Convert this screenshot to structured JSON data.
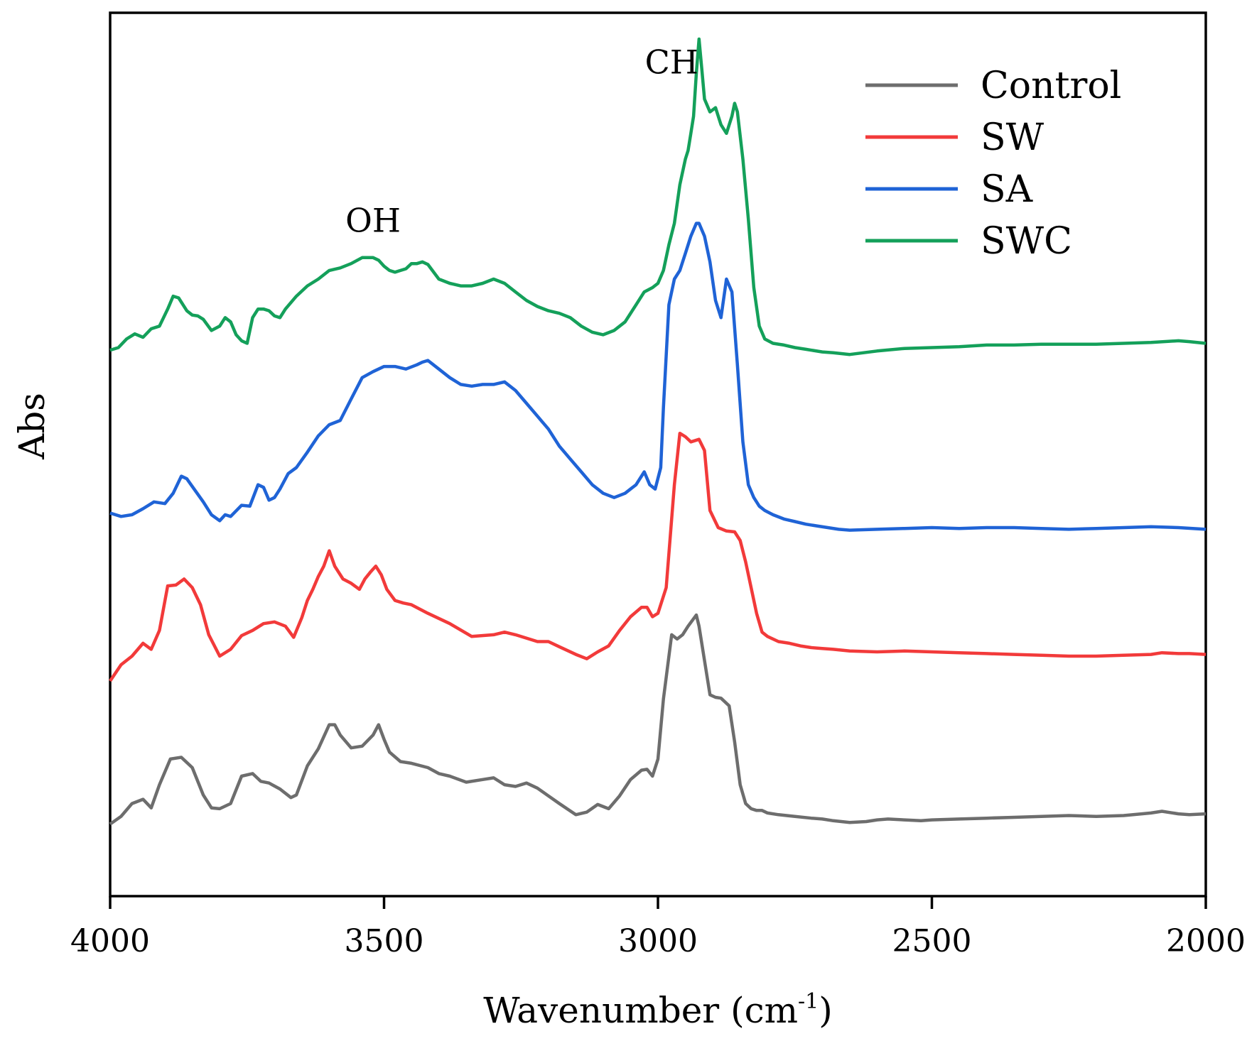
{
  "chart_data": {
    "type": "line",
    "title": "",
    "xlabel": "Wavenumber (cm",
    "xlabel_sup": "-1",
    "xlabel_close": ")",
    "ylabel": "Abs",
    "xlim": [
      4000,
      2000
    ],
    "ylim": [
      0,
      1
    ],
    "x_ticks": [
      4000,
      3500,
      3000,
      2500,
      2000
    ],
    "x_tick_labels": [
      "4000",
      "3500",
      "3000",
      "2500",
      "2000"
    ],
    "grid": false,
    "legend_position": "top-right",
    "annotations": [
      {
        "text": "OH",
        "x": 3520,
        "y": 0.775
      },
      {
        "text": "CH",
        "x": 2975,
        "y": 0.96
      }
    ],
    "series": [
      {
        "name": "Control",
        "color": "#6d6d6d",
        "x": [
          4000,
          3980,
          3960,
          3940,
          3925,
          3910,
          3890,
          3870,
          3850,
          3830,
          3815,
          3800,
          3780,
          3760,
          3740,
          3725,
          3710,
          3690,
          3670,
          3660,
          3640,
          3620,
          3600,
          3590,
          3580,
          3560,
          3540,
          3520,
          3510,
          3500,
          3490,
          3470,
          3450,
          3420,
          3400,
          3380,
          3350,
          3320,
          3300,
          3280,
          3260,
          3240,
          3220,
          3200,
          3180,
          3150,
          3130,
          3110,
          3090,
          3070,
          3050,
          3030,
          3020,
          3010,
          3000,
          2990,
          2975,
          2965,
          2955,
          2945,
          2930,
          2925,
          2915,
          2905,
          2895,
          2885,
          2870,
          2860,
          2850,
          2840,
          2830,
          2820,
          2810,
          2800,
          2780,
          2750,
          2720,
          2700,
          2680,
          2650,
          2620,
          2600,
          2580,
          2550,
          2520,
          2500,
          2450,
          2400,
          2350,
          2300,
          2250,
          2200,
          2150,
          2100,
          2080,
          2050,
          2030,
          2000
        ],
        "values": [
          0.084,
          0.093,
          0.108,
          0.113,
          0.103,
          0.13,
          0.16,
          0.162,
          0.15,
          0.118,
          0.103,
          0.102,
          0.108,
          0.14,
          0.143,
          0.134,
          0.132,
          0.125,
          0.115,
          0.118,
          0.152,
          0.172,
          0.2,
          0.2,
          0.188,
          0.173,
          0.175,
          0.188,
          0.2,
          0.183,
          0.168,
          0.157,
          0.155,
          0.15,
          0.143,
          0.14,
          0.133,
          0.136,
          0.138,
          0.13,
          0.128,
          0.132,
          0.126,
          0.117,
          0.108,
          0.095,
          0.098,
          0.107,
          0.102,
          0.117,
          0.136,
          0.147,
          0.148,
          0.14,
          0.16,
          0.23,
          0.305,
          0.3,
          0.305,
          0.315,
          0.328,
          0.315,
          0.275,
          0.235,
          0.232,
          0.231,
          0.222,
          0.18,
          0.13,
          0.108,
          0.102,
          0.1,
          0.1,
          0.097,
          0.095,
          0.093,
          0.091,
          0.09,
          0.088,
          0.086,
          0.087,
          0.089,
          0.09,
          0.089,
          0.088,
          0.089,
          0.09,
          0.091,
          0.092,
          0.093,
          0.094,
          0.093,
          0.094,
          0.097,
          0.099,
          0.096,
          0.095,
          0.096
        ]
      },
      {
        "name": "SW",
        "color": "#f23a3a",
        "x": [
          4000,
          3980,
          3960,
          3940,
          3925,
          3910,
          3895,
          3880,
          3865,
          3850,
          3835,
          3820,
          3800,
          3780,
          3760,
          3740,
          3720,
          3700,
          3680,
          3665,
          3650,
          3640,
          3630,
          3620,
          3610,
          3600,
          3590,
          3575,
          3560,
          3545,
          3535,
          3525,
          3515,
          3505,
          3495,
          3480,
          3465,
          3450,
          3420,
          3380,
          3340,
          3300,
          3280,
          3260,
          3220,
          3200,
          3180,
          3150,
          3130,
          3110,
          3090,
          3070,
          3050,
          3030,
          3020,
          3010,
          3000,
          2985,
          2970,
          2960,
          2950,
          2940,
          2925,
          2915,
          2905,
          2890,
          2875,
          2860,
          2850,
          2840,
          2830,
          2820,
          2810,
          2800,
          2780,
          2760,
          2740,
          2720,
          2700,
          2680,
          2650,
          2600,
          2550,
          2500,
          2450,
          2400,
          2350,
          2300,
          2250,
          2200,
          2150,
          2100,
          2080,
          2050,
          2030,
          2000
        ],
        "values": [
          0.251,
          0.27,
          0.28,
          0.295,
          0.288,
          0.31,
          0.362,
          0.363,
          0.37,
          0.36,
          0.34,
          0.305,
          0.28,
          0.288,
          0.304,
          0.31,
          0.318,
          0.32,
          0.315,
          0.302,
          0.325,
          0.345,
          0.358,
          0.373,
          0.385,
          0.403,
          0.385,
          0.37,
          0.365,
          0.358,
          0.37,
          0.378,
          0.385,
          0.375,
          0.358,
          0.345,
          0.342,
          0.34,
          0.33,
          0.318,
          0.303,
          0.305,
          0.308,
          0.305,
          0.297,
          0.297,
          0.291,
          0.282,
          0.277,
          0.285,
          0.292,
          0.31,
          0.326,
          0.337,
          0.337,
          0.326,
          0.33,
          0.36,
          0.48,
          0.54,
          0.536,
          0.53,
          0.533,
          0.52,
          0.45,
          0.43,
          0.426,
          0.425,
          0.415,
          0.39,
          0.36,
          0.33,
          0.308,
          0.303,
          0.297,
          0.295,
          0.292,
          0.29,
          0.289,
          0.288,
          0.286,
          0.285,
          0.286,
          0.285,
          0.284,
          0.283,
          0.282,
          0.281,
          0.28,
          0.28,
          0.281,
          0.282,
          0.284,
          0.283,
          0.283,
          0.282
        ]
      },
      {
        "name": "SA",
        "color": "#1f63d6",
        "x": [
          4000,
          3980,
          3960,
          3940,
          3920,
          3900,
          3885,
          3870,
          3860,
          3850,
          3830,
          3815,
          3800,
          3790,
          3780,
          3760,
          3745,
          3730,
          3720,
          3710,
          3700,
          3690,
          3675,
          3660,
          3640,
          3620,
          3600,
          3580,
          3560,
          3540,
          3520,
          3500,
          3480,
          3460,
          3440,
          3430,
          3420,
          3400,
          3380,
          3360,
          3340,
          3320,
          3300,
          3280,
          3260,
          3240,
          3220,
          3200,
          3180,
          3160,
          3140,
          3120,
          3100,
          3080,
          3060,
          3040,
          3025,
          3015,
          3005,
          2995,
          2990,
          2980,
          2970,
          2960,
          2950,
          2940,
          2930,
          2925,
          2915,
          2905,
          2895,
          2885,
          2875,
          2865,
          2855,
          2845,
          2835,
          2825,
          2815,
          2805,
          2790,
          2770,
          2750,
          2730,
          2710,
          2690,
          2670,
          2650,
          2600,
          2550,
          2500,
          2450,
          2400,
          2350,
          2300,
          2250,
          2200,
          2150,
          2100,
          2050,
          2000
        ],
        "values": [
          0.447,
          0.443,
          0.445,
          0.452,
          0.46,
          0.458,
          0.47,
          0.49,
          0.487,
          0.478,
          0.46,
          0.445,
          0.438,
          0.445,
          0.443,
          0.456,
          0.455,
          0.48,
          0.477,
          0.462,
          0.465,
          0.475,
          0.493,
          0.5,
          0.518,
          0.537,
          0.55,
          0.555,
          0.58,
          0.605,
          0.612,
          0.618,
          0.618,
          0.615,
          0.62,
          0.623,
          0.625,
          0.615,
          0.605,
          0.597,
          0.595,
          0.597,
          0.597,
          0.6,
          0.59,
          0.575,
          0.56,
          0.545,
          0.525,
          0.51,
          0.495,
          0.48,
          0.47,
          0.465,
          0.47,
          0.48,
          0.495,
          0.48,
          0.475,
          0.5,
          0.57,
          0.69,
          0.72,
          0.73,
          0.75,
          0.77,
          0.785,
          0.785,
          0.77,
          0.74,
          0.695,
          0.675,
          0.72,
          0.705,
          0.62,
          0.53,
          0.48,
          0.465,
          0.455,
          0.45,
          0.445,
          0.44,
          0.437,
          0.434,
          0.432,
          0.43,
          0.428,
          0.427,
          0.428,
          0.429,
          0.43,
          0.429,
          0.43,
          0.43,
          0.429,
          0.428,
          0.429,
          0.43,
          0.431,
          0.43,
          0.428
        ]
      },
      {
        "name": "SWC",
        "color": "#14a05a",
        "x": [
          4000,
          3985,
          3970,
          3955,
          3940,
          3925,
          3910,
          3895,
          3885,
          3875,
          3860,
          3850,
          3840,
          3830,
          3815,
          3800,
          3790,
          3780,
          3770,
          3760,
          3750,
          3740,
          3730,
          3720,
          3710,
          3700,
          3690,
          3680,
          3660,
          3640,
          3620,
          3600,
          3580,
          3560,
          3540,
          3530,
          3520,
          3510,
          3500,
          3490,
          3480,
          3470,
          3460,
          3450,
          3440,
          3430,
          3420,
          3400,
          3380,
          3360,
          3340,
          3320,
          3300,
          3280,
          3260,
          3240,
          3220,
          3200,
          3180,
          3160,
          3140,
          3120,
          3100,
          3080,
          3060,
          3040,
          3025,
          3010,
          3000,
          2990,
          2980,
          2970,
          2960,
          2950,
          2945,
          2940,
          2935,
          2930,
          2925,
          2920,
          2915,
          2905,
          2895,
          2885,
          2875,
          2865,
          2860,
          2855,
          2845,
          2835,
          2825,
          2815,
          2805,
          2790,
          2770,
          2750,
          2730,
          2700,
          2680,
          2650,
          2600,
          2550,
          2500,
          2450,
          2400,
          2350,
          2300,
          2250,
          2200,
          2150,
          2100,
          2050,
          2030,
          2000
        ],
        "values": [
          0.637,
          0.64,
          0.65,
          0.656,
          0.652,
          0.662,
          0.665,
          0.685,
          0.7,
          0.698,
          0.683,
          0.678,
          0.677,
          0.673,
          0.66,
          0.665,
          0.675,
          0.67,
          0.655,
          0.648,
          0.645,
          0.675,
          0.685,
          0.685,
          0.683,
          0.677,
          0.675,
          0.685,
          0.7,
          0.712,
          0.72,
          0.73,
          0.733,
          0.738,
          0.745,
          0.745,
          0.745,
          0.742,
          0.735,
          0.73,
          0.728,
          0.73,
          0.732,
          0.738,
          0.738,
          0.74,
          0.737,
          0.72,
          0.715,
          0.712,
          0.712,
          0.715,
          0.72,
          0.715,
          0.705,
          0.695,
          0.688,
          0.683,
          0.68,
          0.675,
          0.665,
          0.658,
          0.655,
          0.66,
          0.67,
          0.69,
          0.705,
          0.71,
          0.715,
          0.73,
          0.76,
          0.785,
          0.83,
          0.86,
          0.87,
          0.89,
          0.91,
          0.96,
          1.0,
          0.965,
          0.93,
          0.915,
          0.92,
          0.9,
          0.89,
          0.91,
          0.925,
          0.915,
          0.86,
          0.79,
          0.71,
          0.665,
          0.65,
          0.645,
          0.643,
          0.64,
          0.638,
          0.635,
          0.634,
          0.632,
          0.636,
          0.639,
          0.64,
          0.641,
          0.643,
          0.643,
          0.644,
          0.644,
          0.644,
          0.645,
          0.646,
          0.648,
          0.647,
          0.645
        ]
      }
    ]
  }
}
